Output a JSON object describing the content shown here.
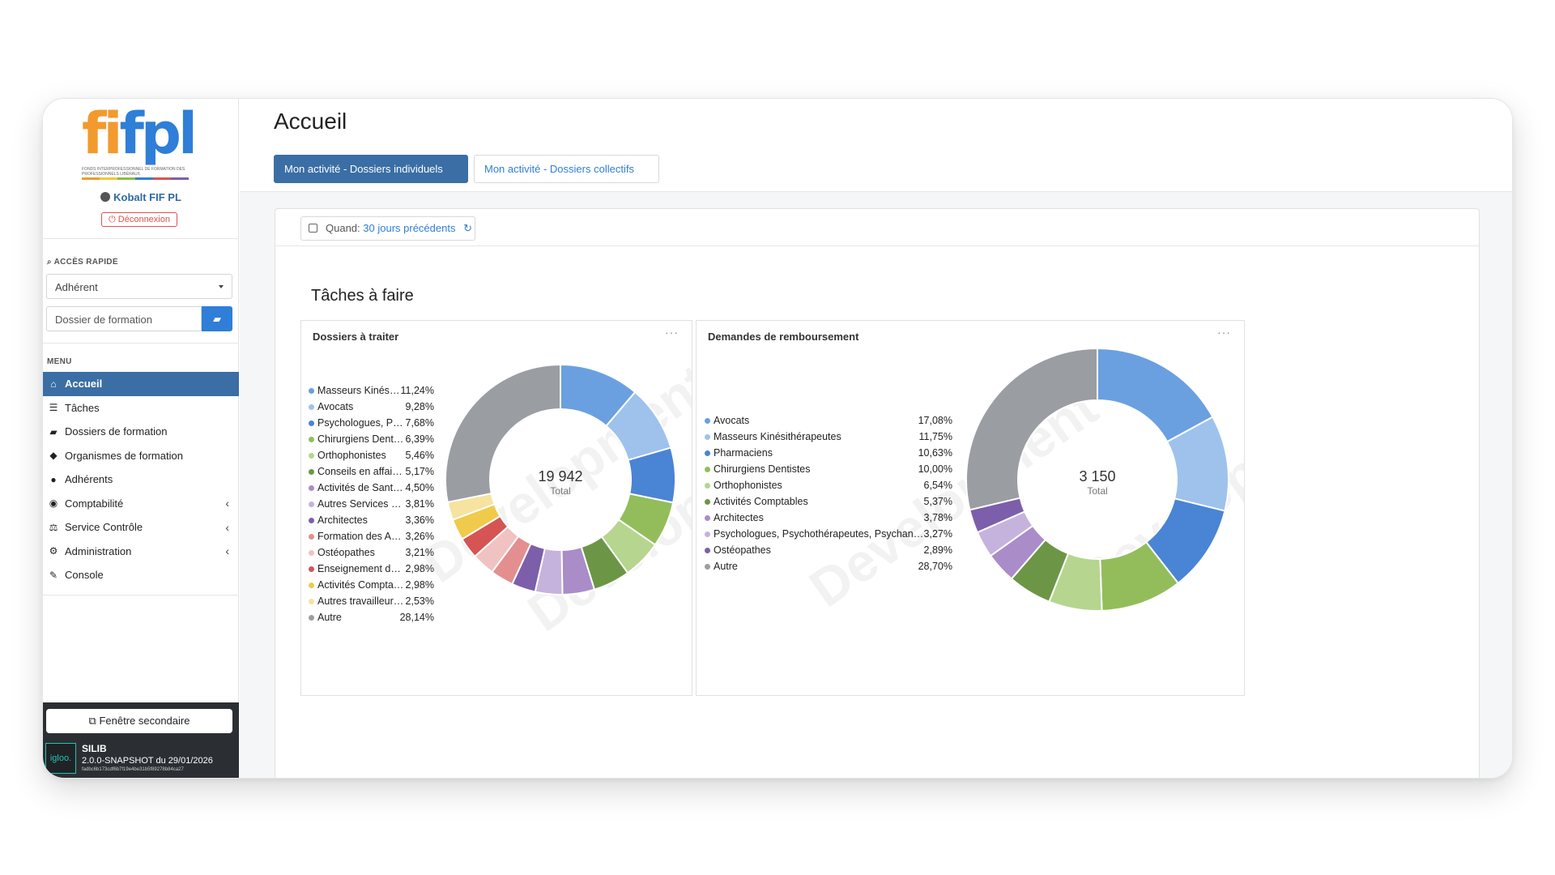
{
  "logo": {
    "letters": "fifpl",
    "subtitle": "FONDS INTERPROFESSIONNEL DE FORMATION DES PROFESSIONNELS LIBÉRAUX"
  },
  "user": {
    "name": "Kobalt FIF PL",
    "logout": "Déconnexion"
  },
  "quick_access": {
    "label": "ACCÈS RAPIDE",
    "select_value": "Adhérent",
    "search_placeholder": "Dossier de formation"
  },
  "menu": {
    "label": "MENU",
    "items": [
      {
        "label": "Accueil",
        "icon": "home-icon",
        "glyph": "⌂",
        "active": true,
        "chevron": false
      },
      {
        "label": "Tâches",
        "icon": "list-icon",
        "glyph": "☰",
        "active": false,
        "chevron": false
      },
      {
        "label": "Dossiers de formation",
        "icon": "folder-icon",
        "glyph": "▰",
        "active": false,
        "chevron": false
      },
      {
        "label": "Organismes de formation",
        "icon": "graduation-cap-icon",
        "glyph": "◆",
        "active": false,
        "chevron": false
      },
      {
        "label": "Adhérents",
        "icon": "user-icon",
        "glyph": "●",
        "active": false,
        "chevron": false
      },
      {
        "label": "Comptabilité",
        "icon": "piggy-bank-icon",
        "glyph": "◉",
        "active": false,
        "chevron": true
      },
      {
        "label": "Service Contrôle",
        "icon": "scale-icon",
        "glyph": "⚖",
        "active": false,
        "chevron": true
      },
      {
        "label": "Administration",
        "icon": "cogs-icon",
        "glyph": "⚙",
        "active": false,
        "chevron": true
      },
      {
        "label": "Console",
        "icon": "wrench-icon",
        "glyph": "✎",
        "active": false,
        "chevron": false
      }
    ]
  },
  "footer": {
    "secondary_window": "Fenêtre secondaire",
    "badge": "igloo.",
    "app": "SILIB",
    "version": "2.0.0-SNAPSHOT du 29/01/2026",
    "hash": "fadbc6b173cdf6b7f19e4be31b5f89278b84ca27"
  },
  "page": {
    "title": "Accueil",
    "tabs": [
      "Mon activité - Dossiers individuels",
      "Mon activité - Dossiers collectifs"
    ],
    "filter_label": "Quand:",
    "filter_value": "30 jours précédents",
    "section_title": "Tâches à faire",
    "watermark": "Development"
  },
  "colors": {
    "accent": "#3a6ea5",
    "link": "#2f7ed8",
    "danger": "#d9534f"
  },
  "chart_data": [
    {
      "type": "pie",
      "title": "Dossiers à traiter",
      "total_value": "19 942",
      "total_label": "Total",
      "slices": [
        {
          "label": "Masseurs Kinésit...",
          "pct_text": "11,24%",
          "value": 11.24,
          "color": "#6aa0e0"
        },
        {
          "label": "Avocats",
          "pct_text": "9,28%",
          "value": 9.28,
          "color": "#9ec2ec"
        },
        {
          "label": "Psychologues, Psyc...",
          "pct_text": "7,68%",
          "value": 7.68,
          "color": "#4a84d4"
        },
        {
          "label": "Chirurgiens Dentis...",
          "pct_text": "6,39%",
          "value": 6.39,
          "color": "#93bd5b"
        },
        {
          "label": "Orthophonistes",
          "pct_text": "5,46%",
          "value": 5.46,
          "color": "#b6d58f"
        },
        {
          "label": "Conseils en affaire...",
          "pct_text": "5,17%",
          "value": 5.17,
          "color": "#6c9645"
        },
        {
          "label": "Activités de Santé ...",
          "pct_text": "4,50%",
          "value": 4.5,
          "color": "#a98cc8"
        },
        {
          "label": "Autres Services Pe...",
          "pct_text": "3,81%",
          "value": 3.81,
          "color": "#c5b3dd"
        },
        {
          "label": "Architectes",
          "pct_text": "3,36%",
          "value": 3.36,
          "color": "#7d5eab"
        },
        {
          "label": "Formation des Adu...",
          "pct_text": "3,26%",
          "value": 3.26,
          "color": "#e38f8f"
        },
        {
          "label": "Ostéopathes",
          "pct_text": "3,21%",
          "value": 3.21,
          "color": "#f0c2c2"
        },
        {
          "label": "Enseignement de d...",
          "pct_text": "2,98%",
          "value": 2.98,
          "color": "#d65454"
        },
        {
          "label": "Activités Comptab...",
          "pct_text": "2,98%",
          "value": 2.98,
          "color": "#f0ca4a"
        },
        {
          "label": "Autres travailleurs ...",
          "pct_text": "2,53%",
          "value": 2.53,
          "color": "#f6e3a0"
        },
        {
          "label": "Autre",
          "pct_text": "28,14%",
          "value": 28.14,
          "color": "#9a9ea3"
        }
      ]
    },
    {
      "type": "pie",
      "title": "Demandes de remboursement",
      "total_value": "3 150",
      "total_label": "Total",
      "slices": [
        {
          "label": "Avocats",
          "pct_text": "17,08%",
          "value": 17.08,
          "color": "#6aa0e0"
        },
        {
          "label": "Masseurs Kinésithérapeutes",
          "pct_text": "11,75%",
          "value": 11.75,
          "color": "#9ec2ec"
        },
        {
          "label": "Pharmaciens",
          "pct_text": "10,63%",
          "value": 10.63,
          "color": "#4a84d4"
        },
        {
          "label": "Chirurgiens Dentistes",
          "pct_text": "10,00%",
          "value": 10.0,
          "color": "#93bd5b"
        },
        {
          "label": "Orthophonistes",
          "pct_text": "6,54%",
          "value": 6.54,
          "color": "#b6d58f"
        },
        {
          "label": "Activités Comptables",
          "pct_text": "5,37%",
          "value": 5.37,
          "color": "#6c9645"
        },
        {
          "label": "Architectes",
          "pct_text": "3,78%",
          "value": 3.78,
          "color": "#a98cc8"
        },
        {
          "label": "Psychologues, Psychothérapeutes, Psychanalyste...",
          "pct_text": "3,27%",
          "value": 3.27,
          "color": "#c5b3dd"
        },
        {
          "label": "Ostéopathes",
          "pct_text": "2,89%",
          "value": 2.89,
          "color": "#7d5eab"
        },
        {
          "label": "Autre",
          "pct_text": "28,70%",
          "value": 28.7,
          "color": "#9a9ea3"
        }
      ]
    }
  ]
}
